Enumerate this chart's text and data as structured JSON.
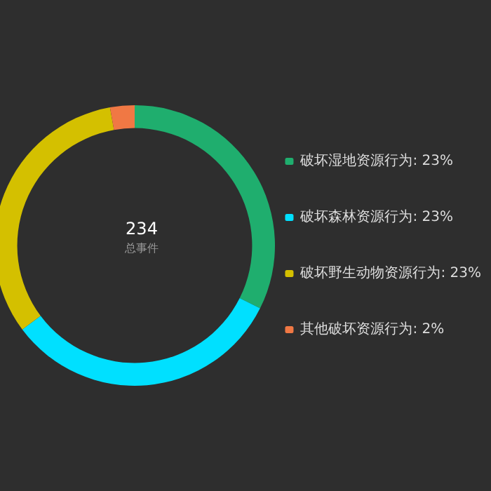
{
  "chart_data": {
    "type": "donut",
    "title": "234",
    "subtitle": "总事件",
    "categories": [
      "破坏湿地资源行为",
      "破坏森林资源行为",
      "破坏野生动物资源行为",
      "其他破坏资源行为"
    ],
    "values": [
      23,
      23,
      23,
      2
    ],
    "value_labels": [
      "23%",
      "23%",
      "23%",
      "2%"
    ],
    "colors": [
      "#1fae6e",
      "#00e0ff",
      "#d4c000",
      "#f07844"
    ],
    "legend": "right"
  }
}
